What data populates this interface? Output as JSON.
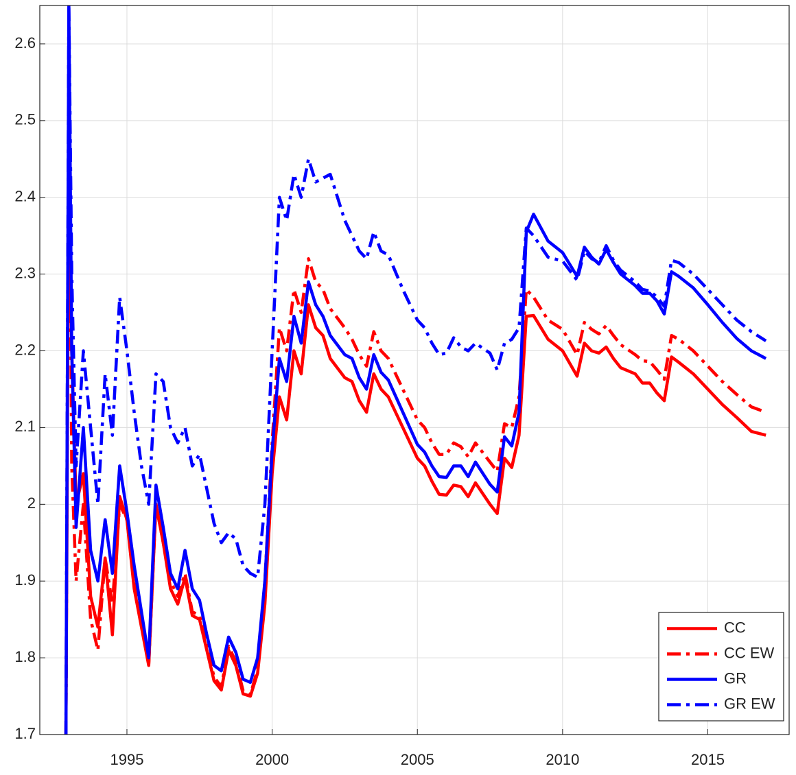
{
  "chart_data": {
    "type": "line",
    "x": [
      1992.9,
      1993.0,
      1993.1,
      1993.25,
      1993.5,
      1993.75,
      1994.0,
      1994.25,
      1994.5,
      1994.75,
      1995.0,
      1995.25,
      1995.5,
      1995.75,
      1996.0,
      1996.25,
      1996.5,
      1996.75,
      1997.0,
      1997.25,
      1997.5,
      1997.75,
      1998.0,
      1998.25,
      1998.5,
      1998.75,
      1999.0,
      1999.25,
      1999.5,
      1999.75,
      2000.0,
      2000.25,
      2000.5,
      2000.75,
      2001.0,
      2001.25,
      2001.5,
      2001.75,
      2002.0,
      2002.5,
      2002.75,
      2003.0,
      2003.25,
      2003.5,
      2003.75,
      2004.0,
      2004.5,
      2005.0,
      2005.25,
      2005.5,
      2005.75,
      2006.0,
      2006.25,
      2006.5,
      2006.75,
      2007.0,
      2007.5,
      2007.75,
      2008.0,
      2008.25,
      2008.5,
      2008.75,
      2009.0,
      2009.5,
      2010.0,
      2010.5,
      2010.75,
      2011.0,
      2011.25,
      2011.5,
      2011.75,
      2012.0,
      2012.5,
      2012.75,
      2013.0,
      2013.25,
      2013.5,
      2013.75,
      2014.0,
      2014.5,
      2015.0,
      2015.5,
      2016.0,
      2016.5,
      2017.0
    ],
    "series": [
      {
        "name": "CC",
        "color": "#ff0000",
        "linestyle": "solid",
        "values": [
          1.7,
          2.45,
          2.2,
          2.0,
          2.04,
          1.88,
          1.84,
          1.93,
          1.83,
          2.01,
          1.98,
          1.89,
          1.84,
          1.79,
          2.0,
          1.95,
          1.89,
          1.87,
          1.905,
          1.855,
          1.85,
          1.81,
          1.77,
          1.758,
          1.81,
          1.79,
          1.753,
          1.75,
          1.78,
          1.87,
          2.04,
          2.14,
          2.11,
          2.2,
          2.17,
          2.26,
          2.23,
          2.22,
          2.19,
          2.165,
          2.16,
          2.135,
          2.12,
          2.17,
          2.15,
          2.14,
          2.1,
          2.06,
          2.05,
          2.03,
          2.013,
          2.012,
          2.025,
          2.023,
          2.01,
          2.028,
          2.0,
          1.988,
          2.06,
          2.048,
          2.09,
          2.245,
          2.246,
          2.215,
          2.2,
          2.167,
          2.21,
          2.2,
          2.197,
          2.205,
          2.19,
          2.178,
          2.17,
          2.158,
          2.158,
          2.145,
          2.135,
          2.192,
          2.185,
          2.17,
          2.15,
          2.13,
          2.113,
          2.095,
          2.09
        ]
      },
      {
        "name": "CC EW",
        "color": "#ff0000",
        "linestyle": "dashdot",
        "values": [
          1.7,
          2.6,
          2.05,
          1.9,
          2.0,
          1.85,
          1.81,
          1.93,
          1.87,
          2.0,
          1.98,
          1.9,
          1.85,
          1.79,
          2.0,
          1.95,
          1.9,
          1.88,
          1.91,
          1.86,
          1.855,
          1.815,
          1.775,
          1.762,
          1.815,
          1.795,
          1.757,
          1.752,
          1.785,
          1.9,
          2.08,
          2.23,
          2.2,
          2.28,
          2.25,
          2.32,
          2.29,
          2.28,
          2.255,
          2.23,
          2.215,
          2.195,
          2.18,
          2.225,
          2.2,
          2.19,
          2.15,
          2.11,
          2.1,
          2.08,
          2.065,
          2.065,
          2.08,
          2.075,
          2.062,
          2.08,
          2.055,
          2.043,
          2.105,
          2.1,
          2.14,
          2.28,
          2.27,
          2.24,
          2.228,
          2.195,
          2.237,
          2.228,
          2.222,
          2.233,
          2.22,
          2.208,
          2.195,
          2.187,
          2.186,
          2.175,
          2.163,
          2.22,
          2.215,
          2.2,
          2.18,
          2.16,
          2.143,
          2.127,
          2.12
        ]
      },
      {
        "name": "GR",
        "color": "#0000ff",
        "linestyle": "solid",
        "values": [
          1.7,
          2.65,
          2.2,
          1.97,
          2.1,
          1.94,
          1.9,
          1.98,
          1.91,
          2.05,
          1.99,
          1.92,
          1.86,
          1.8,
          2.025,
          1.97,
          1.91,
          1.89,
          1.94,
          1.89,
          1.875,
          1.83,
          1.79,
          1.783,
          1.827,
          1.807,
          1.772,
          1.768,
          1.8,
          1.9,
          2.07,
          2.19,
          2.16,
          2.245,
          2.21,
          2.29,
          2.26,
          2.245,
          2.22,
          2.195,
          2.19,
          2.165,
          2.15,
          2.195,
          2.172,
          2.162,
          2.12,
          2.078,
          2.068,
          2.05,
          2.036,
          2.035,
          2.05,
          2.05,
          2.036,
          2.055,
          2.026,
          2.016,
          2.088,
          2.076,
          2.12,
          2.355,
          2.378,
          2.343,
          2.328,
          2.297,
          2.335,
          2.322,
          2.313,
          2.332,
          2.315,
          2.3,
          2.285,
          2.275,
          2.275,
          2.265,
          2.248,
          2.303,
          2.297,
          2.282,
          2.26,
          2.237,
          2.216,
          2.2,
          2.19
        ]
      },
      {
        "name": "GR EW",
        "color": "#0000ff",
        "linestyle": "dashdot",
        "values": [
          1.7,
          2.65,
          2.3,
          2.05,
          2.2,
          2.1,
          2.0,
          2.17,
          2.09,
          2.27,
          2.2,
          2.12,
          2.05,
          2.0,
          2.17,
          2.16,
          2.1,
          2.08,
          2.1,
          2.05,
          2.065,
          2.02,
          1.975,
          1.95,
          1.963,
          1.955,
          1.92,
          1.91,
          1.905,
          2.0,
          2.2,
          2.4,
          2.37,
          2.43,
          2.4,
          2.45,
          2.42,
          2.425,
          2.43,
          2.37,
          2.35,
          2.33,
          2.32,
          2.355,
          2.33,
          2.325,
          2.28,
          2.24,
          2.23,
          2.21,
          2.195,
          2.197,
          2.217,
          2.205,
          2.2,
          2.21,
          2.197,
          2.175,
          2.21,
          2.215,
          2.23,
          2.36,
          2.35,
          2.322,
          2.317,
          2.292,
          2.33,
          2.32,
          2.315,
          2.337,
          2.318,
          2.305,
          2.29,
          2.28,
          2.278,
          2.27,
          2.258,
          2.318,
          2.315,
          2.3,
          2.28,
          2.26,
          2.24,
          2.225,
          2.213
        ]
      }
    ],
    "xlim": [
      1992,
      2017.8
    ],
    "ylim": [
      1.7,
      2.65
    ],
    "xticks": [
      1995,
      2000,
      2005,
      2010,
      2015
    ],
    "yticks": [
      1.7,
      1.8,
      1.9,
      2,
      2.1,
      2.2,
      2.3,
      2.4,
      2.5,
      2.6
    ],
    "grid": true,
    "legend": "lower right"
  }
}
